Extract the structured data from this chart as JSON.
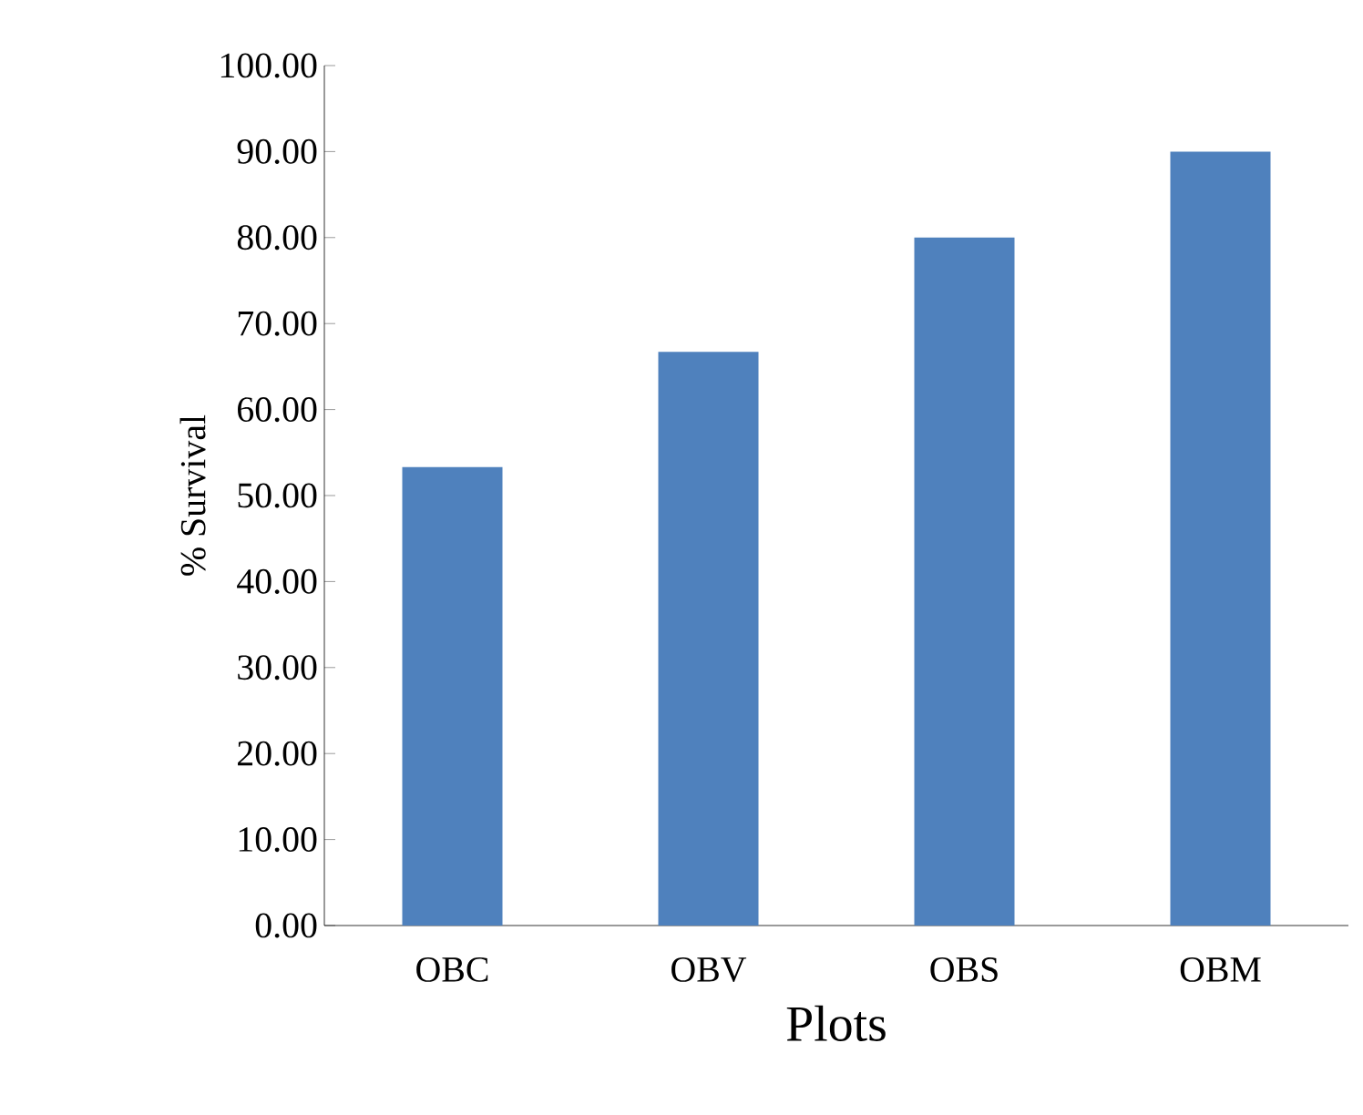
{
  "chart_data": {
    "type": "bar",
    "xlabel": "Plots",
    "ylabel": "% Survival",
    "categories": [
      "OBC",
      "OBV",
      "OBS",
      "OBM"
    ],
    "values": [
      53.3,
      66.7,
      80.0,
      90.0
    ],
    "color": "#4f81bd",
    "ylim": [
      0,
      100
    ],
    "yticks": [
      {
        "value": 0,
        "label": "0.00"
      },
      {
        "value": 10,
        "label": "10.00"
      },
      {
        "value": 20,
        "label": "20.00"
      },
      {
        "value": 30,
        "label": "30.00"
      },
      {
        "value": 40,
        "label": "40.00"
      },
      {
        "value": 50,
        "label": "50.00"
      },
      {
        "value": 60,
        "label": "60.00"
      },
      {
        "value": 70,
        "label": "70.00"
      },
      {
        "value": 80,
        "label": "80.00"
      },
      {
        "value": 90,
        "label": "90.00"
      },
      {
        "value": 100,
        "label": "100.00"
      }
    ],
    "grid": false
  }
}
